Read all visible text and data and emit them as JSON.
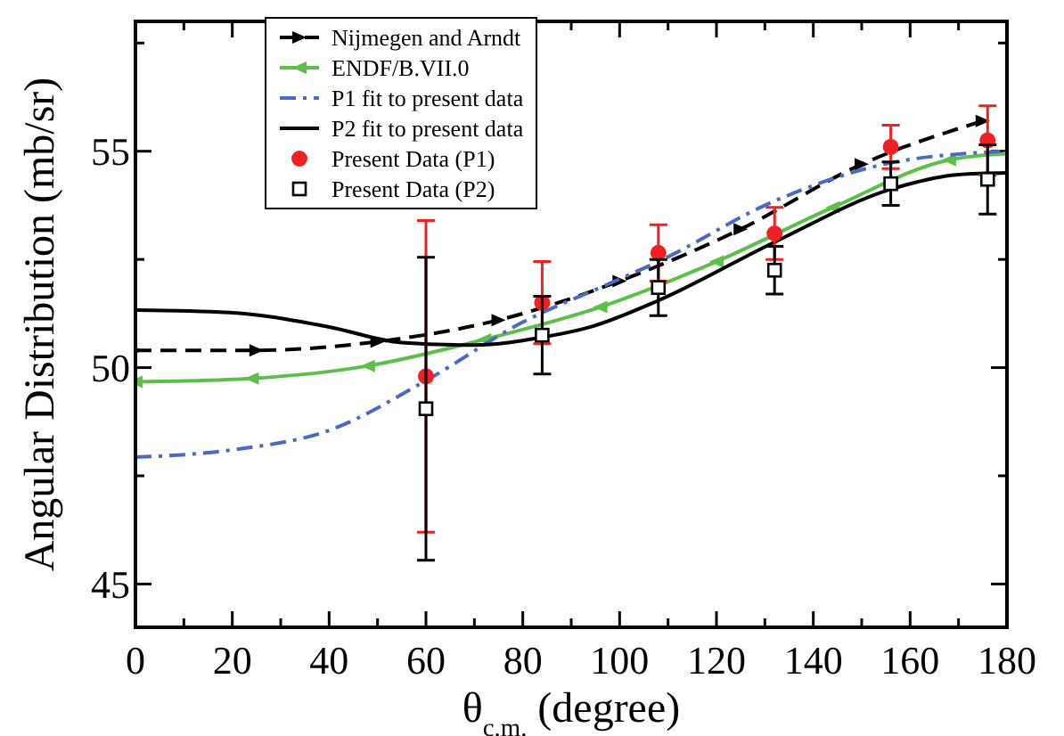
{
  "chart_data": {
    "type": "line",
    "xlabel": "θ$_{c.m.}$ (degree)",
    "ylabel": "Angular Distribution (mb/sr)",
    "xlim": [
      0,
      180
    ],
    "ylim": [
      44,
      58
    ],
    "xticks": [
      0,
      {
        "value": 10,
        "label": null
      },
      20,
      {
        "value": 30,
        "label": null
      },
      40,
      {
        "value": 50,
        "label": null
      },
      60,
      {
        "value": 70,
        "label": null
      },
      80,
      {
        "value": 90,
        "label": null
      },
      100,
      {
        "value": 110,
        "label": null
      },
      120,
      {
        "value": 130,
        "label": null
      },
      140,
      {
        "value": 150,
        "label": null
      },
      160,
      {
        "value": 170,
        "label": null
      },
      180
    ],
    "yticks": [
      45,
      {
        "value": 47.5,
        "label": null
      },
      50,
      {
        "value": 52.5,
        "label": null
      },
      55,
      {
        "value": 57.5,
        "label": null
      }
    ],
    "grid": false,
    "legend": "top",
    "series": [
      {
        "name": "Nijmegen and Arndt",
        "color": "#000000",
        "line_style": "dashed",
        "marker": "triangle",
        "x": [
          0,
          25,
          50,
          75,
          100,
          125,
          150,
          175
        ],
        "values": [
          50.4,
          50.4,
          50.6,
          51.1,
          52.0,
          53.2,
          54.7,
          55.7
        ]
      },
      {
        "name": "ENDF/B.VII.0",
        "color": "#5cbf4a",
        "line_style": "solid",
        "marker": "triangle",
        "x": [
          0,
          24,
          48,
          72,
          96,
          120,
          144,
          168,
          180
        ],
        "values": [
          49.67,
          49.75,
          50.04,
          50.65,
          51.4,
          52.45,
          53.7,
          54.8,
          54.95
        ]
      },
      {
        "name": "P1 fit to present data",
        "color": "#4a6bc4",
        "line_style": "dashdot",
        "marker": "none",
        "x": [
          0,
          20,
          40,
          60,
          80,
          97,
          108,
          132,
          156,
          180
        ],
        "values": [
          47.93,
          48.1,
          48.55,
          49.7,
          51.05,
          51.9,
          52.45,
          53.85,
          54.73,
          55.0
        ]
      },
      {
        "name": "P2 fit to present data",
        "color": "#000000",
        "line_style": "solid",
        "marker": "none",
        "x": [
          0,
          20,
          40,
          55,
          70,
          84,
          94,
          108,
          132,
          156,
          170,
          180
        ],
        "values": [
          51.33,
          51.27,
          50.94,
          50.58,
          50.52,
          50.7,
          50.94,
          51.55,
          52.9,
          54.12,
          54.46,
          54.5
        ]
      },
      {
        "name": "Present Data (P1)",
        "type": "scatter",
        "color": "#ee2222",
        "marker": "circle",
        "x": [
          60,
          84,
          108,
          132,
          156,
          176
        ],
        "values": [
          49.8,
          51.5,
          52.65,
          53.1,
          55.1,
          55.25
        ],
        "errors": [
          3.6,
          0.95,
          0.65,
          0.6,
          0.5,
          0.8
        ]
      },
      {
        "name": "Present Data (P2)",
        "type": "scatter",
        "color": "#000000",
        "marker": "square",
        "x": [
          60,
          84,
          108,
          132,
          156,
          176
        ],
        "values": [
          49.05,
          50.75,
          51.85,
          52.25,
          54.25,
          54.35
        ],
        "errors": [
          3.5,
          0.9,
          0.65,
          0.55,
          0.5,
          0.8
        ]
      }
    ]
  }
}
